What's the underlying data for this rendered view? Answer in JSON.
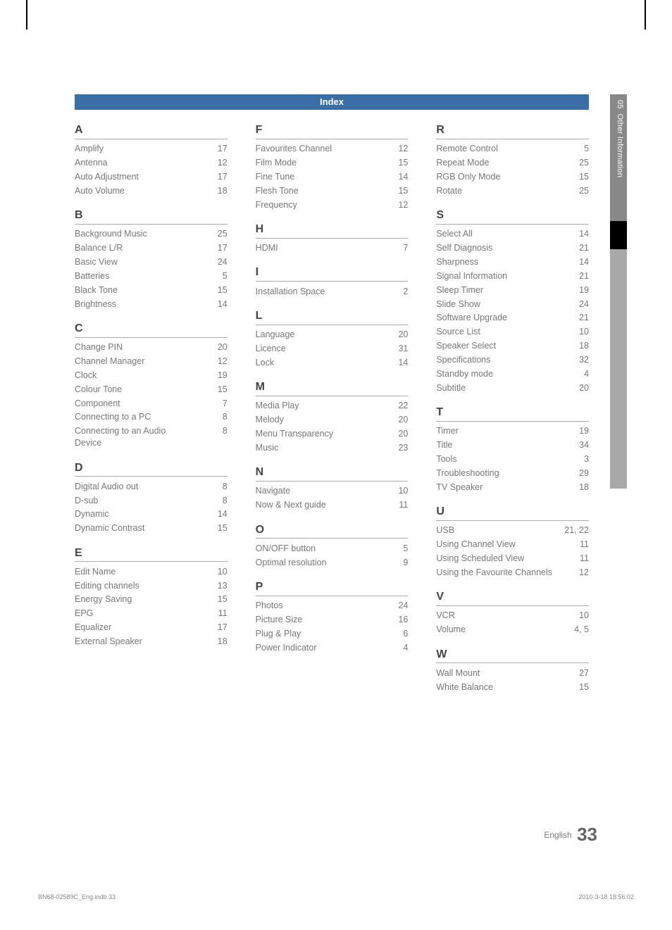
{
  "header": {
    "title": "Index"
  },
  "sideTab": {
    "chapter": "05",
    "label": "Other Information"
  },
  "footer": {
    "langLabel": "English",
    "pageNumber": "33"
  },
  "printLine": {
    "left": "BN68-02589C_Eng.indb   33",
    "right": "2010-3-18   18:56:02"
  },
  "columns": [
    {
      "groups": [
        {
          "letter": "A",
          "rows": [
            {
              "term": "Amplify",
              "page": "17"
            },
            {
              "term": "Antenna",
              "page": "12"
            },
            {
              "term": "Auto Adjustment",
              "page": "17"
            },
            {
              "term": "Auto Volume",
              "page": "18"
            }
          ]
        },
        {
          "letter": "B",
          "rows": [
            {
              "term": "Background Music",
              "page": "25"
            },
            {
              "term": "Balance L/R",
              "page": "17"
            },
            {
              "term": "Basic View",
              "page": "24"
            },
            {
              "term": "Batteries",
              "page": "5"
            },
            {
              "term": "Black Tone",
              "page": "15"
            },
            {
              "term": "Brightness",
              "page": "14"
            }
          ]
        },
        {
          "letter": "C",
          "rows": [
            {
              "term": "Change PIN",
              "page": "20"
            },
            {
              "term": "Channel Manager",
              "page": "12"
            },
            {
              "term": "Clock",
              "page": "19"
            },
            {
              "term": "Colour Tone",
              "page": "15"
            },
            {
              "term": "Component",
              "page": "7"
            },
            {
              "term": "Connecting to a PC",
              "page": "8"
            },
            {
              "term": "Connecting to an Audio Device",
              "page": "8"
            }
          ]
        },
        {
          "letter": "D",
          "rows": [
            {
              "term": "Digital Audio out",
              "page": "8"
            },
            {
              "term": "D-sub",
              "page": "8"
            },
            {
              "term": "Dynamic",
              "page": "14"
            },
            {
              "term": "Dynamic Contrast",
              "page": "15"
            }
          ]
        },
        {
          "letter": "E",
          "rows": [
            {
              "term": "Edit Name",
              "page": "10"
            },
            {
              "term": "Editing channels",
              "page": "13"
            },
            {
              "term": "Energy Saving",
              "page": "15"
            },
            {
              "term": "EPG",
              "page": "11"
            },
            {
              "term": "Equalizer",
              "page": "17"
            },
            {
              "term": "External Speaker",
              "page": "18"
            }
          ]
        }
      ]
    },
    {
      "groups": [
        {
          "letter": "F",
          "rows": [
            {
              "term": "Favourites Channel",
              "page": "12"
            },
            {
              "term": "Film Mode",
              "page": "15"
            },
            {
              "term": "Fine Tune",
              "page": "14"
            },
            {
              "term": "Flesh Tone",
              "page": "15"
            },
            {
              "term": "Frequency",
              "page": "12"
            }
          ]
        },
        {
          "letter": "H",
          "rows": [
            {
              "term": "HDMI",
              "page": "7"
            }
          ]
        },
        {
          "letter": "I",
          "rows": [
            {
              "term": "Installation Space",
              "page": "2"
            }
          ]
        },
        {
          "letter": "L",
          "rows": [
            {
              "term": "Language",
              "page": "20"
            },
            {
              "term": "Licence",
              "page": "31"
            },
            {
              "term": "Lock",
              "page": "14"
            }
          ]
        },
        {
          "letter": "M",
          "rows": [
            {
              "term": "Media Play",
              "page": "22"
            },
            {
              "term": "Melody",
              "page": "20"
            },
            {
              "term": "Menu Transparency",
              "page": "20"
            },
            {
              "term": "Music",
              "page": "23"
            }
          ]
        },
        {
          "letter": "N",
          "rows": [
            {
              "term": "Navigate",
              "page": "10"
            },
            {
              "term": "Now & Next guide",
              "page": "11"
            }
          ]
        },
        {
          "letter": "O",
          "rows": [
            {
              "term": "ON/OFF button",
              "page": "5"
            },
            {
              "term": "Optimal resolution",
              "page": "9"
            }
          ]
        },
        {
          "letter": "P",
          "rows": [
            {
              "term": "Photos",
              "page": "24"
            },
            {
              "term": "Picture Size",
              "page": "16"
            },
            {
              "term": "Plug & Play",
              "page": "6"
            },
            {
              "term": "Power Indicator",
              "page": "4"
            }
          ]
        }
      ]
    },
    {
      "groups": [
        {
          "letter": "R",
          "rows": [
            {
              "term": "Remote Control",
              "page": "5"
            },
            {
              "term": "Repeat Mode",
              "page": "25"
            },
            {
              "term": "RGB Only Mode",
              "page": "15"
            },
            {
              "term": "Rotate",
              "page": "25"
            }
          ]
        },
        {
          "letter": "S",
          "rows": [
            {
              "term": "Select All",
              "page": "14"
            },
            {
              "term": "Self Diagnosis",
              "page": "21"
            },
            {
              "term": "Sharpness",
              "page": "14"
            },
            {
              "term": "Signal Information",
              "page": "21"
            },
            {
              "term": "Sleep Timer",
              "page": "19"
            },
            {
              "term": "Slide Show",
              "page": "24"
            },
            {
              "term": "Software Upgrade",
              "page": "21"
            },
            {
              "term": "Source List",
              "page": "10"
            },
            {
              "term": "Speaker Select",
              "page": "18"
            },
            {
              "term": "Specifications",
              "page": "32"
            },
            {
              "term": "Standby mode",
              "page": "4"
            },
            {
              "term": "Subtitle",
              "page": "20"
            }
          ]
        },
        {
          "letter": "T",
          "rows": [
            {
              "term": "Timer",
              "page": "19"
            },
            {
              "term": "Title",
              "page": "34"
            },
            {
              "term": "Tools",
              "page": "3"
            },
            {
              "term": "Troubleshooting",
              "page": "29"
            },
            {
              "term": "TV Speaker",
              "page": "18"
            }
          ]
        },
        {
          "letter": "U",
          "rows": [
            {
              "term": "USB",
              "page": "21, 22"
            },
            {
              "term": "Using Channel View",
              "page": "11"
            },
            {
              "term": "Using Scheduled View",
              "page": "11"
            },
            {
              "term": "Using the Favourite Channels",
              "page": "12"
            }
          ]
        },
        {
          "letter": "V",
          "rows": [
            {
              "term": "VCR",
              "page": "10"
            },
            {
              "term": "Volume",
              "page": "4, 5"
            }
          ]
        },
        {
          "letter": "W",
          "rows": [
            {
              "term": "Wall Mount",
              "page": "27"
            },
            {
              "term": "White Balance",
              "page": "15"
            }
          ]
        }
      ]
    }
  ]
}
